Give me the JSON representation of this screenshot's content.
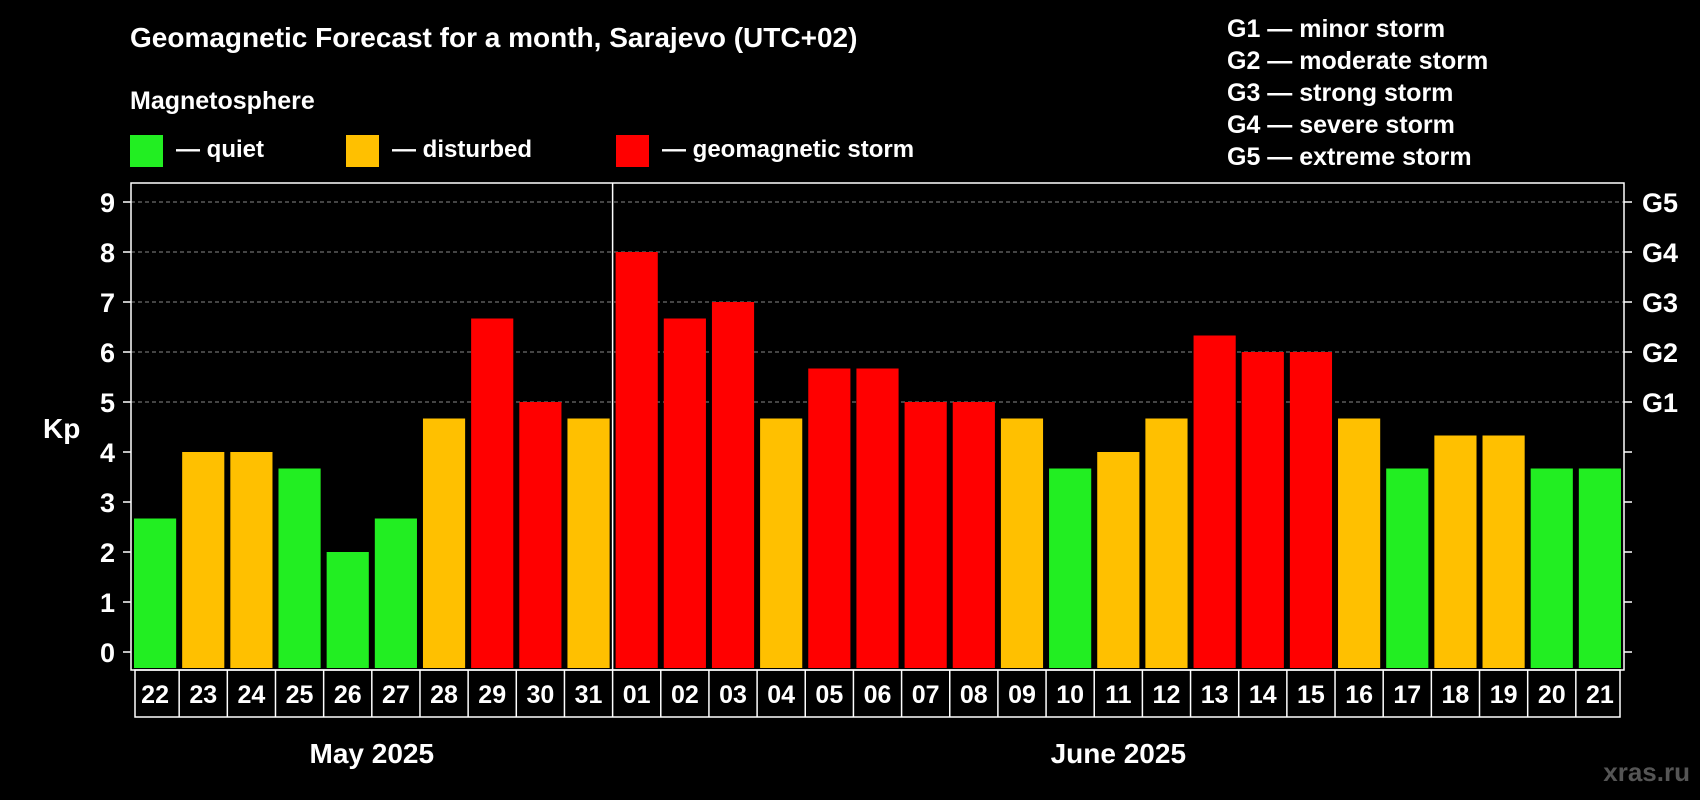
{
  "title": "Geomagnetic Forecast for a month, Sarajevo (UTC+02)",
  "legend": {
    "heading": "Magnetosphere",
    "items": [
      {
        "label": "— quiet",
        "color": "#22ee22"
      },
      {
        "label": "— disturbed",
        "color": "#ffc000"
      },
      {
        "label": "— geomagnetic storm",
        "color": "#ff0000"
      }
    ]
  },
  "storm_scale": [
    "G1 — minor storm",
    "G2 — moderate storm",
    "G3 — strong storm",
    "G4 — severe storm",
    "G5 — extreme storm"
  ],
  "watermark": "xras.ru",
  "chart_data": {
    "type": "bar",
    "ylabel": "Kp",
    "ylim": [
      0,
      9
    ],
    "yticks": [
      "0",
      "1",
      "2",
      "3",
      "4",
      "5",
      "6",
      "7",
      "8",
      "9"
    ],
    "right_axis_labels": [
      {
        "value": 5,
        "label": "G1"
      },
      {
        "value": 6,
        "label": "G2"
      },
      {
        "value": 7,
        "label": "G3"
      },
      {
        "value": 8,
        "label": "G4"
      },
      {
        "value": 9,
        "label": "G5"
      }
    ],
    "grid": "horizontal dashed",
    "categories": [
      "22",
      "23",
      "24",
      "25",
      "26",
      "27",
      "28",
      "29",
      "30",
      "31",
      "01",
      "02",
      "03",
      "04",
      "05",
      "06",
      "07",
      "08",
      "09",
      "10",
      "11",
      "12",
      "13",
      "14",
      "15",
      "16",
      "17",
      "18",
      "19",
      "20",
      "21"
    ],
    "values": [
      2.67,
      4,
      4,
      3.67,
      2,
      2.67,
      4.67,
      6.67,
      5,
      4.67,
      8,
      6.67,
      7,
      4.67,
      5.67,
      5.67,
      5,
      5,
      4.67,
      3.67,
      4,
      4.67,
      6.33,
      6,
      6,
      4.67,
      3.67,
      4.33,
      4.33,
      3.67,
      3.67
    ],
    "levels": [
      "quiet",
      "disturbed",
      "disturbed",
      "quiet",
      "quiet",
      "quiet",
      "disturbed",
      "storm",
      "storm",
      "disturbed",
      "storm",
      "storm",
      "storm",
      "disturbed",
      "storm",
      "storm",
      "storm",
      "storm",
      "disturbed",
      "quiet",
      "disturbed",
      "disturbed",
      "storm",
      "storm",
      "storm",
      "disturbed",
      "quiet",
      "disturbed",
      "disturbed",
      "quiet",
      "quiet"
    ],
    "colors": {
      "quiet": "#22ee22",
      "disturbed": "#ffc000",
      "storm": "#ff0000"
    },
    "months": [
      {
        "label": "May 2025",
        "start": 0,
        "count": 10
      },
      {
        "label": "June 2025",
        "start": 10,
        "count": 21
      }
    ]
  }
}
